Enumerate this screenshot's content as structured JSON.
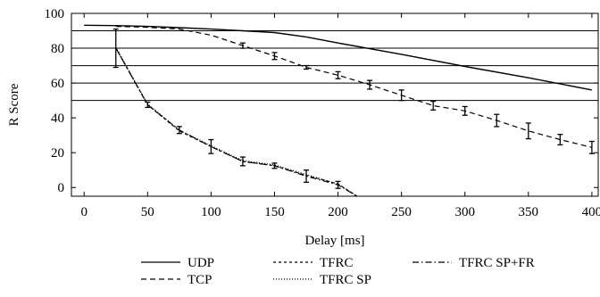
{
  "chart_data": {
    "type": "line",
    "title": "",
    "xlabel": "Delay [ms]",
    "ylabel": "R Score",
    "xlim": [
      -10,
      405
    ],
    "ylim": [
      -5,
      100
    ],
    "xticks": [
      0,
      50,
      100,
      150,
      200,
      250,
      300,
      350,
      400
    ],
    "yticks": [
      0,
      20,
      40,
      60,
      80,
      100
    ],
    "reference_lines_y": [
      50,
      60,
      70,
      80,
      90
    ],
    "grid": false,
    "legend_position": "bottom",
    "series": [
      {
        "name": "UDP",
        "dash": "solid",
        "x": [
          0,
          25,
          50,
          75,
          100,
          125,
          150,
          175,
          200,
          250,
          300,
          350,
          400
        ],
        "y": [
          93.2,
          93,
          92.5,
          91.8,
          91,
          90,
          89,
          86.5,
          83,
          76.5,
          69.5,
          63,
          56
        ]
      },
      {
        "name": "TCP",
        "dash": "dashed",
        "x": [
          25,
          50,
          75,
          100,
          125,
          150,
          175,
          200,
          225,
          250,
          275,
          300,
          325,
          350,
          375,
          400
        ],
        "y": [
          92.5,
          92,
          91,
          87.5,
          81.5,
          75.5,
          69,
          64.5,
          59,
          53,
          47,
          44,
          38.5,
          32.5,
          27.5,
          23
        ],
        "err": [
          0,
          0,
          0,
          0,
          1.5,
          2,
          1,
          2,
          2.5,
          3,
          2.5,
          2.5,
          3.5,
          4.5,
          3,
          3.5
        ]
      },
      {
        "name": "TFRC",
        "dash": "dotted-dash",
        "x": [
          25,
          50,
          75,
          100,
          125,
          150,
          175,
          200,
          215
        ],
        "y": [
          80,
          47.5,
          32.5,
          23.5,
          15,
          12.5,
          7,
          2,
          -5
        ]
      },
      {
        "name": "TFRC SP",
        "dash": "dotted",
        "x": [
          25,
          50,
          75,
          100,
          125,
          150,
          175,
          200,
          215
        ],
        "y": [
          80.5,
          48,
          33,
          24,
          15.5,
          13,
          7.5,
          2,
          -5
        ]
      },
      {
        "name": "TFRC SP+FR",
        "dash": "dash-dot",
        "x": [
          25,
          50,
          75,
          100,
          125,
          150,
          175,
          200,
          215
        ],
        "y": [
          80,
          47.5,
          33,
          23.5,
          15,
          12.5,
          6.5,
          1.5,
          -5
        ],
        "err": [
          11,
          1.5,
          2,
          4,
          2.5,
          1.5,
          3.5,
          2,
          0
        ]
      }
    ],
    "legend": {
      "columns": [
        [
          "UDP",
          "TCP"
        ],
        [
          "TFRC",
          "TFRC SP"
        ],
        [
          "TFRC SP+FR"
        ]
      ]
    }
  }
}
